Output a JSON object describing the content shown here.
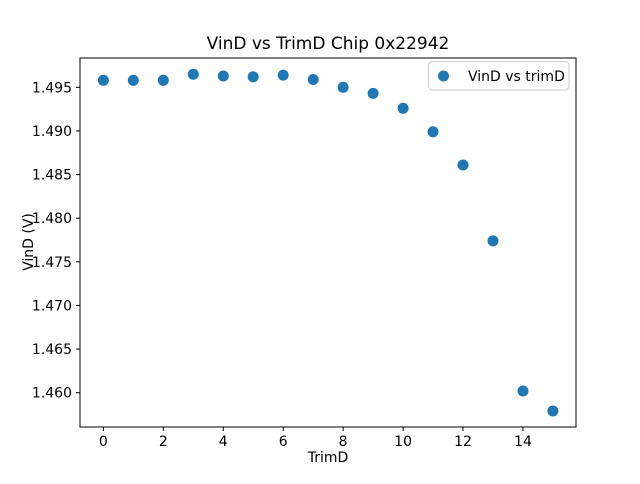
{
  "chart_data": {
    "type": "scatter",
    "title": "VinD vs TrimD Chip 0x22942",
    "xlabel": "TrimD",
    "ylabel": "VinD (V)",
    "series": [
      {
        "name": "VinD vs trimD",
        "x": [
          0,
          1,
          2,
          3,
          4,
          5,
          6,
          7,
          8,
          9,
          10,
          11,
          12,
          13,
          14,
          15
        ],
        "y": [
          1.4958,
          1.4958,
          1.4958,
          1.4965,
          1.4963,
          1.4962,
          1.4964,
          1.4959,
          1.495,
          1.4943,
          1.4926,
          1.4899,
          1.4861,
          1.4774,
          1.4602,
          1.4579
        ]
      }
    ],
    "xlim": [
      -0.78,
      15.77
    ],
    "ylim": [
      1.45607,
      1.49836
    ],
    "xticks": {
      "values": [
        0,
        2,
        4,
        6,
        8,
        10,
        12,
        14
      ],
      "labels": [
        "0",
        "2",
        "4",
        "6",
        "8",
        "10",
        "12",
        "14"
      ]
    },
    "yticks": {
      "values": [
        1.46,
        1.465,
        1.47,
        1.475,
        1.48,
        1.485,
        1.49,
        1.495
      ],
      "labels": [
        "1.460",
        "1.465",
        "1.470",
        "1.475",
        "1.480",
        "1.485",
        "1.490",
        "1.495"
      ]
    },
    "grid": false,
    "legend_position": "upper right",
    "colors": {
      "marker": "#1f77b4",
      "spine": "#000000",
      "legend_border": "#cccccc",
      "background": "#ffffff"
    },
    "marker": "circle",
    "marker_radius_px": 5.5
  }
}
